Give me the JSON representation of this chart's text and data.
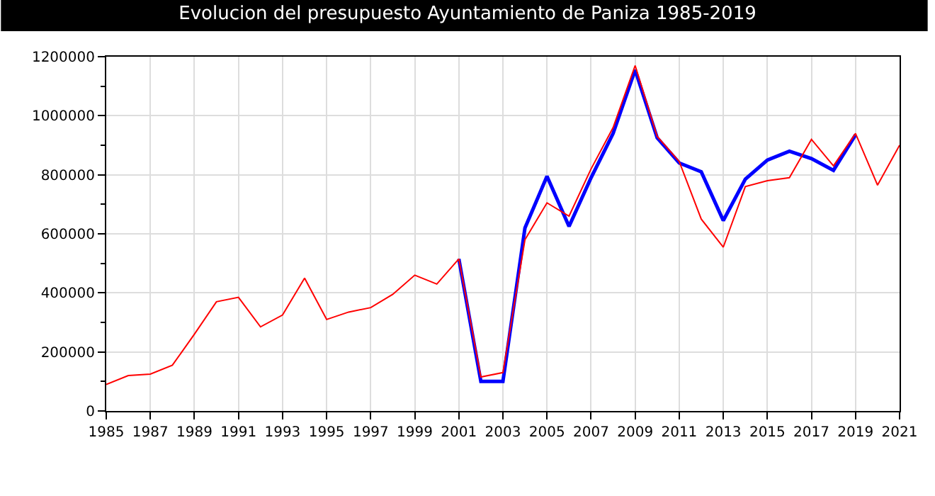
{
  "chart_data": {
    "type": "line",
    "title": "Evolucion del presupuesto Ayuntamiento de Paniza 1985-2019",
    "x": [
      1985,
      1986,
      1987,
      1988,
      1989,
      1990,
      1991,
      1992,
      1993,
      1994,
      1995,
      1996,
      1997,
      1998,
      1999,
      2000,
      2001,
      2002,
      2003,
      2004,
      2005,
      2006,
      2007,
      2008,
      2009,
      2010,
      2011,
      2012,
      2013,
      2014,
      2015,
      2016,
      2017,
      2018,
      2019,
      2020,
      2021
    ],
    "series": [
      {
        "color": "#0000ff",
        "x": [
          2001,
          2002,
          2003,
          2004,
          2005,
          2006,
          2007,
          2008,
          2009,
          2010,
          2011,
          2012,
          2013,
          2014,
          2015,
          2016,
          2017,
          2018,
          2019
        ],
        "values": [
          515000,
          100000,
          100000,
          620000,
          795000,
          625000,
          790000,
          940000,
          1155000,
          925000,
          840000,
          810000,
          645000,
          785000,
          850000,
          880000,
          855000,
          815000,
          935000
        ]
      },
      {
        "color": "#ff0000",
        "values": [
          90000,
          120000,
          125000,
          155000,
          260000,
          370000,
          385000,
          285000,
          325000,
          450000,
          310000,
          335000,
          350000,
          395000,
          460000,
          430000,
          515000,
          115000,
          130000,
          580000,
          705000,
          660000,
          820000,
          960000,
          1170000,
          930000,
          845000,
          650000,
          555000,
          760000,
          780000,
          790000,
          920000,
          830000,
          940000,
          765000,
          900000
        ]
      }
    ],
    "xlim": [
      1985,
      2021
    ],
    "xticks": [
      1985,
      1987,
      1989,
      1991,
      1993,
      1995,
      1997,
      1999,
      2001,
      2003,
      2005,
      2007,
      2009,
      2011,
      2013,
      2015,
      2017,
      2019,
      2021
    ],
    "ylim": [
      0,
      1200000
    ],
    "yticks": [
      0,
      200000,
      400000,
      600000,
      800000,
      1000000,
      1200000
    ],
    "grid": true,
    "marker": "none",
    "line_style": "solid"
  }
}
